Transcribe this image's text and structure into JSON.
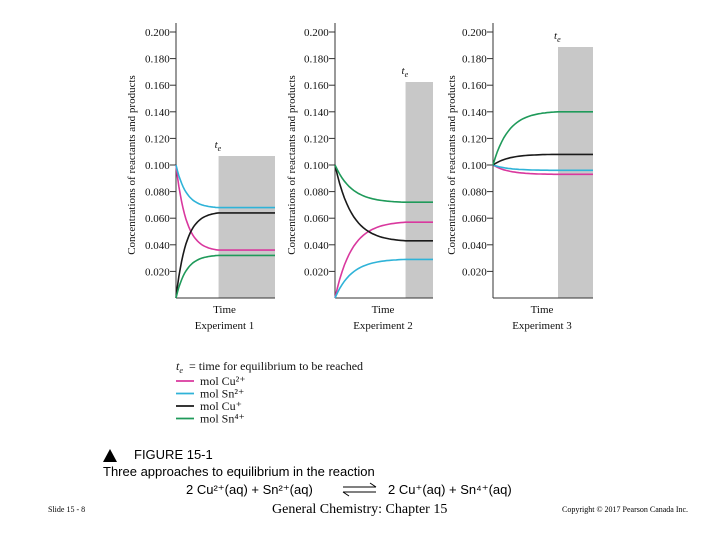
{
  "slide": {
    "number_label": "Slide 15 - 8",
    "course_title": "General Chemistry: Chapter 15",
    "copyright": "Copyright © 2017 Pearson Canada Inc."
  },
  "figure": {
    "label": "FIGURE 15-1",
    "caption": "Three approaches to equilibrium in the reaction",
    "equation_left": "2 Cu²⁺(aq) + Sn²⁺(aq)",
    "equation_right": "2 Cu⁺(aq) + Sn⁴⁺(aq)",
    "ylabel": "Concentrations of reactants and products",
    "xlabel": "Time",
    "te_label": "tₑ",
    "te_note": "tₑ = time for equilibrium to be reached"
  },
  "colors": {
    "cu2": "#d9389e",
    "sn2": "#2fb3d8",
    "cu1": "#1a1a1a",
    "sn4": "#1f9a5a",
    "shade": "#c8c8c8"
  },
  "chart_data": [
    {
      "type": "line",
      "title": "Experiment 1",
      "xlabel": "Time",
      "ylabel": "Concentrations of reactants and products",
      "ylim": [
        0,
        0.2
      ],
      "yticks": [
        "0.200",
        "0.180",
        "0.160",
        "0.140",
        "0.120",
        "0.100",
        "0.080",
        "0.060",
        "0.040",
        "0.020"
      ],
      "te_fraction": 0.43,
      "series": [
        {
          "name": "mol Cu²⁺",
          "color_key": "cu2",
          "start": 0.1,
          "end": 0.036
        },
        {
          "name": "mol Sn²⁺",
          "color_key": "sn2",
          "start": 0.1,
          "end": 0.068
        },
        {
          "name": "mol Cu⁺",
          "color_key": "cu1",
          "start": 0.0,
          "end": 0.064
        },
        {
          "name": "mol Sn⁴⁺",
          "color_key": "sn4",
          "start": 0.0,
          "end": 0.032
        }
      ]
    },
    {
      "type": "line",
      "title": "Experiment 2",
      "xlabel": "Time",
      "ylabel": "Concentrations of reactants and products",
      "ylim": [
        0,
        0.2
      ],
      "yticks": [
        "0.200",
        "0.180",
        "0.160",
        "0.140",
        "0.120",
        "0.100",
        "0.080",
        "0.060",
        "0.040",
        "0.020"
      ],
      "te_fraction": 0.72,
      "series": [
        {
          "name": "mol Cu²⁺",
          "color_key": "cu2",
          "start": 0.0,
          "end": 0.057
        },
        {
          "name": "mol Sn²⁺",
          "color_key": "sn2",
          "start": 0.0,
          "end": 0.029
        },
        {
          "name": "mol Cu⁺",
          "color_key": "cu1",
          "start": 0.1,
          "end": 0.043
        },
        {
          "name": "mol Sn⁴⁺",
          "color_key": "sn4",
          "start": 0.1,
          "end": 0.072
        }
      ]
    },
    {
      "type": "line",
      "title": "Experiment 3",
      "xlabel": "Time",
      "ylabel": "Concentrations of reactants and products",
      "ylim": [
        0,
        0.2
      ],
      "yticks": [
        "0.200",
        "0.180",
        "0.160",
        "0.140",
        "0.120",
        "0.100",
        "0.080",
        "0.060",
        "0.040",
        "0.020"
      ],
      "te_fraction": 0.65,
      "series": [
        {
          "name": "mol Cu²⁺",
          "color_key": "cu2",
          "start": 0.1,
          "end": 0.093
        },
        {
          "name": "mol Sn²⁺",
          "color_key": "sn2",
          "start": 0.1,
          "end": 0.096
        },
        {
          "name": "mol Cu⁺",
          "color_key": "cu1",
          "start": 0.1,
          "end": 0.108
        },
        {
          "name": "mol Sn⁴⁺",
          "color_key": "sn4",
          "start": 0.1,
          "end": 0.14
        }
      ]
    }
  ],
  "legend": [
    {
      "label": "mol Cu²⁺",
      "color_key": "cu2"
    },
    {
      "label": "mol Sn²⁺",
      "color_key": "sn2"
    },
    {
      "label": "mol Cu⁺",
      "color_key": "cu1"
    },
    {
      "label": "mol Sn⁴⁺",
      "color_key": "sn4"
    }
  ]
}
